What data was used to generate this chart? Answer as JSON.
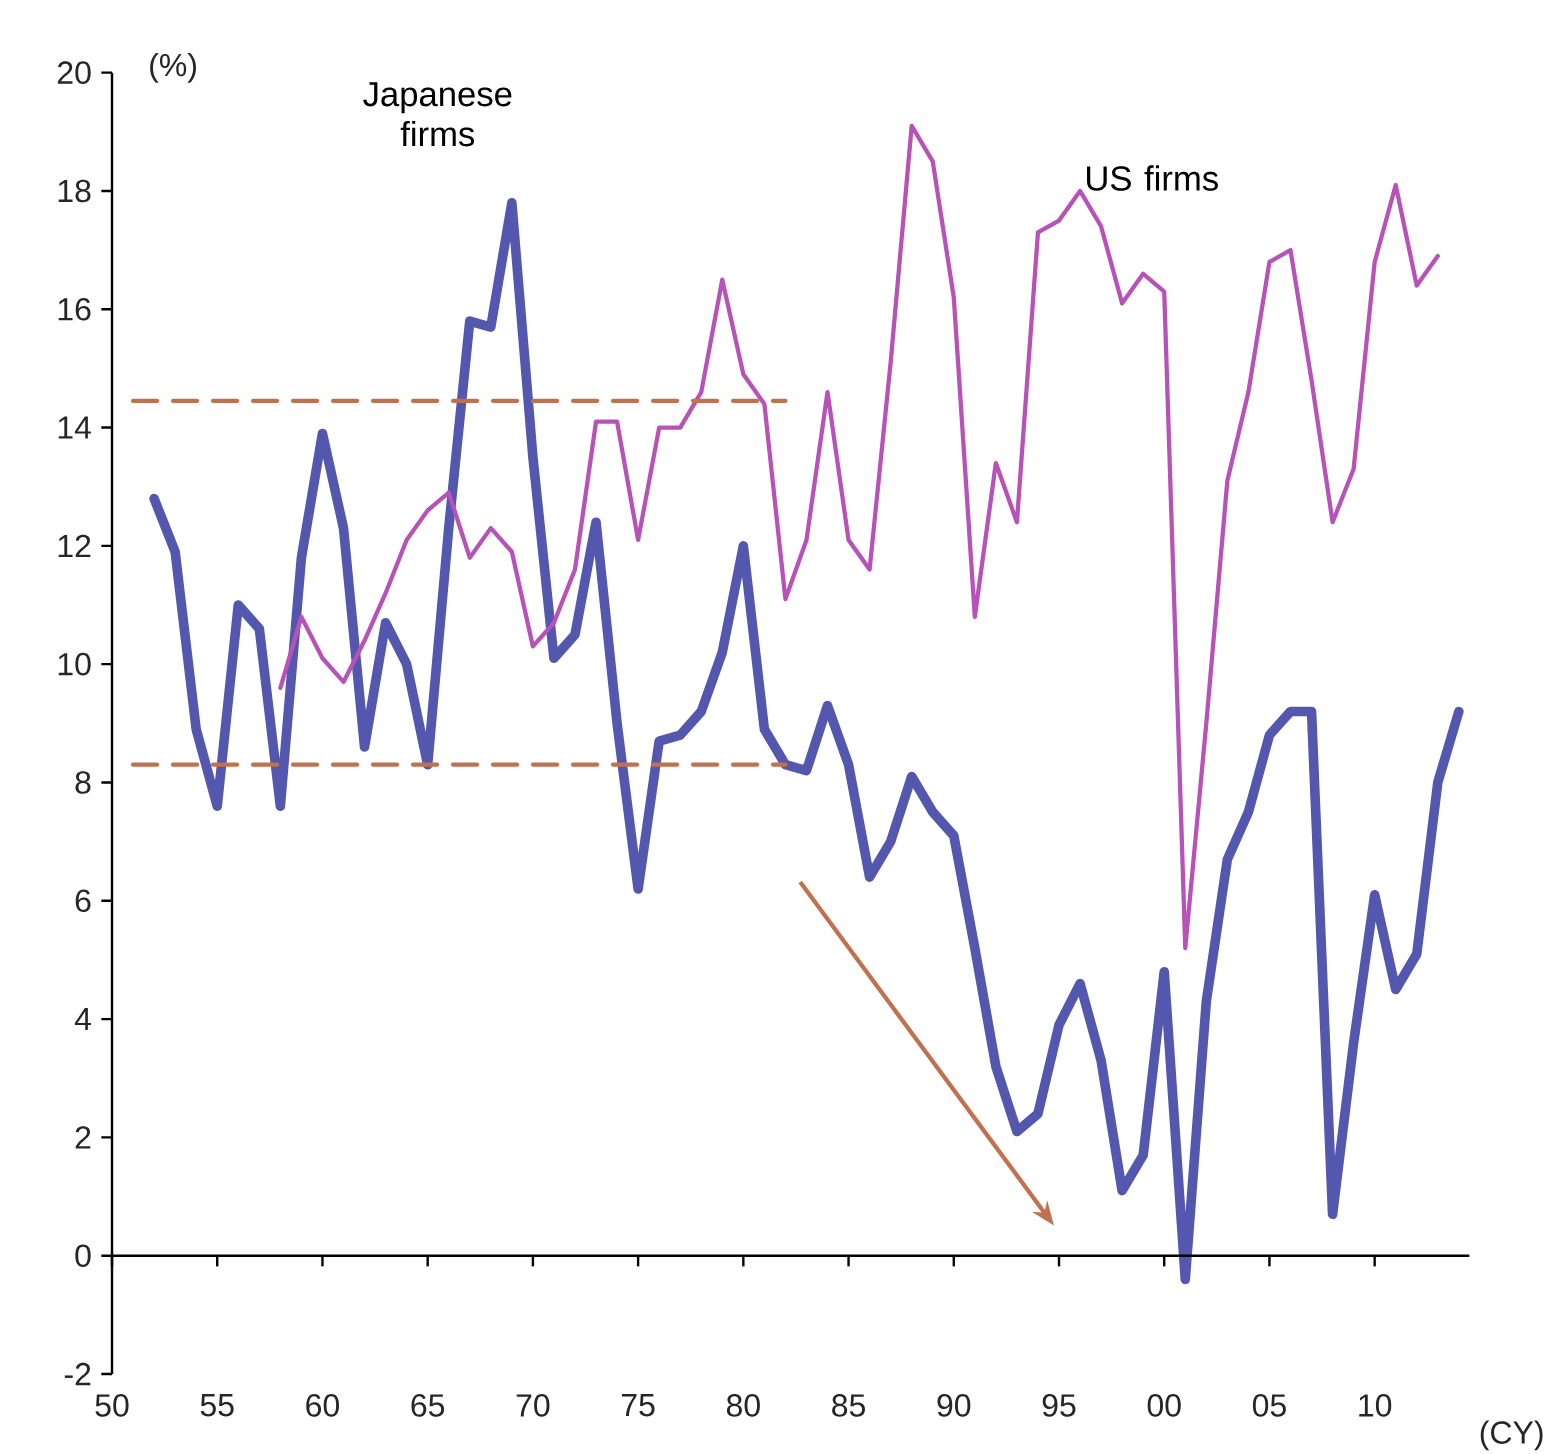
{
  "chart_data": {
    "type": "line",
    "xlabel": "(CY)",
    "ylabel": "(%)",
    "xlim": [
      1950,
      2014.5
    ],
    "ylim": [
      -2,
      20
    ],
    "xticks": [
      {
        "value": 1950,
        "label": "50"
      },
      {
        "value": 1955,
        "label": "55"
      },
      {
        "value": 1960,
        "label": "60"
      },
      {
        "value": 1965,
        "label": "65"
      },
      {
        "value": 1970,
        "label": "70"
      },
      {
        "value": 1975,
        "label": "75"
      },
      {
        "value": 1980,
        "label": "80"
      },
      {
        "value": 1985,
        "label": "85"
      },
      {
        "value": 1990,
        "label": "90"
      },
      {
        "value": 1995,
        "label": "95"
      },
      {
        "value": 2000,
        "label": "00"
      },
      {
        "value": 2005,
        "label": "05"
      },
      {
        "value": 2010,
        "label": "10"
      }
    ],
    "yticks": [
      -2,
      0,
      2,
      4,
      6,
      8,
      10,
      12,
      14,
      16,
      18,
      20
    ],
    "series": [
      {
        "name": "Japanese firms",
        "color": "#5457ae",
        "x": [
          1952,
          1953,
          1954,
          1955,
          1956,
          1957,
          1958,
          1959,
          1960,
          1961,
          1962,
          1963,
          1964,
          1965,
          1966,
          1967,
          1968,
          1969,
          1970,
          1971,
          1972,
          1973,
          1974,
          1975,
          1976,
          1977,
          1978,
          1979,
          1980,
          1981,
          1982,
          1983,
          1984,
          1985,
          1986,
          1987,
          1988,
          1989,
          1990,
          1991,
          1992,
          1993,
          1994,
          1995,
          1996,
          1997,
          1998,
          1999,
          2000,
          2001,
          2002,
          2003,
          2004,
          2005,
          2006,
          2007,
          2008,
          2009,
          2010,
          2011,
          2012,
          2013,
          2014
        ],
        "values": [
          12.8,
          11.9,
          8.9,
          7.6,
          11.0,
          10.6,
          7.6,
          11.8,
          13.9,
          12.3,
          8.6,
          10.7,
          10.0,
          8.3,
          12.3,
          15.8,
          15.7,
          17.8,
          13.5,
          10.1,
          10.5,
          12.4,
          9.0,
          6.2,
          8.7,
          8.8,
          9.2,
          10.2,
          12.0,
          8.9,
          8.3,
          8.2,
          9.3,
          8.3,
          6.4,
          7.0,
          8.1,
          7.5,
          7.1,
          5.2,
          3.2,
          2.1,
          2.4,
          3.9,
          4.6,
          3.3,
          1.1,
          1.7,
          4.8,
          -0.4,
          4.3,
          6.7,
          7.5,
          8.8,
          9.2,
          9.2,
          0.7,
          3.6,
          6.1,
          4.5,
          5.1,
          8.0,
          9.2
        ]
      },
      {
        "name": "US firms",
        "color": "#b652b8",
        "x": [
          1958,
          1959,
          1960,
          1961,
          1962,
          1963,
          1964,
          1965,
          1966,
          1967,
          1968,
          1969,
          1970,
          1971,
          1972,
          1973,
          1974,
          1975,
          1976,
          1977,
          1978,
          1979,
          1980,
          1981,
          1982,
          1983,
          1984,
          1985,
          1986,
          1987,
          1988,
          1989,
          1990,
          1991,
          1992,
          1993,
          1994,
          1995,
          1996,
          1997,
          1998,
          1999,
          2000,
          2001,
          2002,
          2003,
          2004,
          2005,
          2006,
          2007,
          2008,
          2009,
          2010,
          2011,
          2012,
          2013
        ],
        "values": [
          9.6,
          10.8,
          10.1,
          9.7,
          10.4,
          11.2,
          12.1,
          12.6,
          12.9,
          11.8,
          12.3,
          11.9,
          10.3,
          10.7,
          11.6,
          14.1,
          14.1,
          12.1,
          14.0,
          14.0,
          14.6,
          16.5,
          14.9,
          14.4,
          11.1,
          12.1,
          14.6,
          12.1,
          11.6,
          15.1,
          19.1,
          18.5,
          16.2,
          10.8,
          13.4,
          12.4,
          17.3,
          17.5,
          18.0,
          17.4,
          16.1,
          16.6,
          16.3,
          5.2,
          9.0,
          13.1,
          14.6,
          16.8,
          17.0,
          14.8,
          12.4,
          13.3,
          16.8,
          18.1,
          16.4,
          16.9
        ]
      },
      {
        "type": "line",
        "color": "#c0714f",
        "line_style": "dashed",
        "x": [
          1951,
          1982
        ],
        "values": [
          14.45,
          14.45
        ]
      },
      {
        "type": "line",
        "color": "#c0714f",
        "line_style": "dashed",
        "x": [
          1951,
          1982
        ],
        "values": [
          8.3,
          8.3
        ]
      }
    ]
  }
}
